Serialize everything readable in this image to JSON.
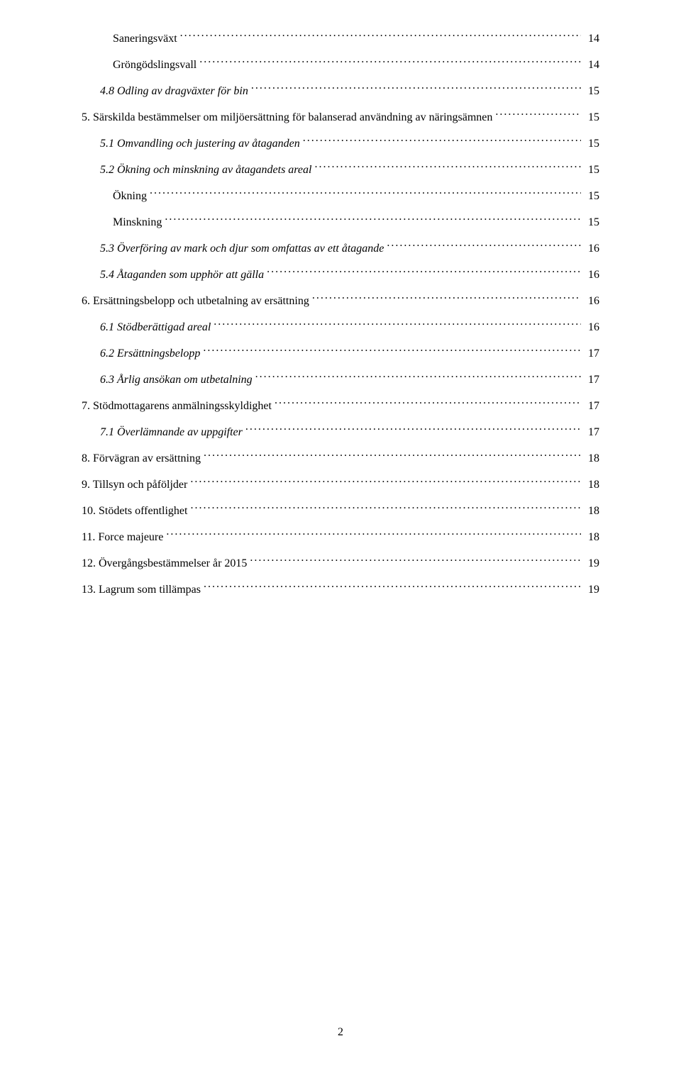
{
  "page_number": "2",
  "typography": {
    "font_family": "Times New Roman",
    "font_size_pt": 12,
    "text_color": "#000000",
    "background_color": "#ffffff"
  },
  "toc": {
    "entries": [
      {
        "title": "Saneringsväxt",
        "page": "14",
        "indent": 2,
        "italic": false
      },
      {
        "title": "Gröngödslingsvall",
        "page": "14",
        "indent": 2,
        "italic": false
      },
      {
        "title": "4.8 Odling av dragväxter för bin",
        "page": "15",
        "indent": 1,
        "italic": true
      },
      {
        "title": "5. Särskilda bestämmelser om miljöersättning för balanserad användning av näringsämnen",
        "page": "15",
        "indent": 0,
        "italic": false
      },
      {
        "title": "5.1 Omvandling och justering av åtaganden",
        "page": "15",
        "indent": 1,
        "italic": true
      },
      {
        "title": "5.2 Ökning och minskning av åtagandets areal",
        "page": "15",
        "indent": 1,
        "italic": true
      },
      {
        "title": "Ökning",
        "page": "15",
        "indent": 2,
        "italic": false
      },
      {
        "title": "Minskning",
        "page": "15",
        "indent": 2,
        "italic": false
      },
      {
        "title": "5.3 Överföring av mark och djur som omfattas av ett åtagande",
        "page": "16",
        "indent": 1,
        "italic": true
      },
      {
        "title": "5.4 Åtaganden som upphör att gälla",
        "page": "16",
        "indent": 1,
        "italic": true
      },
      {
        "title": "6. Ersättningsbelopp och utbetalning av ersättning",
        "page": "16",
        "indent": 0,
        "italic": false
      },
      {
        "title": "6.1 Stödberättigad areal",
        "page": "16",
        "indent": 1,
        "italic": true
      },
      {
        "title": "6.2 Ersättningsbelopp",
        "page": "17",
        "indent": 1,
        "italic": true
      },
      {
        "title": "6.3 Årlig ansökan om utbetalning",
        "page": "17",
        "indent": 1,
        "italic": true
      },
      {
        "title": "7. Stödmottagarens anmälningsskyldighet",
        "page": "17",
        "indent": 0,
        "italic": false
      },
      {
        "title": "7.1 Överlämnande av uppgifter",
        "page": "17",
        "indent": 1,
        "italic": true
      },
      {
        "title": "8. Förvägran av ersättning",
        "page": "18",
        "indent": 0,
        "italic": false
      },
      {
        "title": "9. Tillsyn och påföljder",
        "page": "18",
        "indent": 0,
        "italic": false
      },
      {
        "title": "10.  Stödets offentlighet",
        "page": "18",
        "indent": 0,
        "italic": false
      },
      {
        "title": "11. Force majeure",
        "page": "18",
        "indent": 0,
        "italic": false
      },
      {
        "title": "12. Övergångsbestämmelser år 2015",
        "page": "19",
        "indent": 0,
        "italic": false
      },
      {
        "title": "13. Lagrum som tillämpas",
        "page": "19",
        "indent": 0,
        "italic": false
      }
    ]
  }
}
